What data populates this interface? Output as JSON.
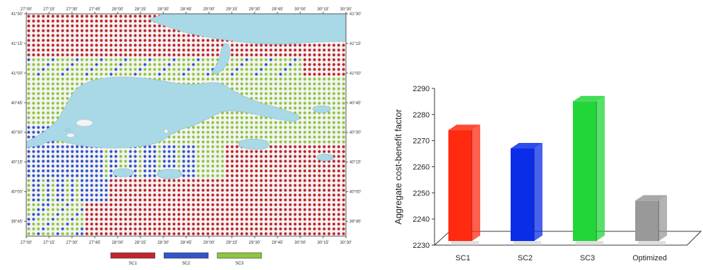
{
  "colors": {
    "sc1": "#c0262c",
    "sc2": "#3355cc",
    "sc3": "#8ec63f",
    "sea": "#a9d8e6",
    "frame": "#9a9a9a"
  },
  "chart_data": [
    {
      "type": "heatmap",
      "title": "",
      "x_ticks": [
        "27°00'",
        "27°15'",
        "27°30'",
        "27°45'",
        "28°00'",
        "28°15'",
        "28°30'",
        "28°45'",
        "29°00'",
        "29°15'",
        "29°30'",
        "29°45'",
        "30°00'",
        "30°15'",
        "30°30'"
      ],
      "y_ticks": [
        "41°30'",
        "41°15'",
        "41°00'",
        "40°45'",
        "40°30'",
        "40°15'",
        "40°00'",
        "39°45'"
      ],
      "xlim": [
        "27°00'",
        "30°30'"
      ],
      "ylim": [
        "39°38'",
        "41°30'"
      ],
      "legend": [
        "SC1",
        "SC2",
        "SC3"
      ],
      "legend_position": "bottom",
      "categories_by_region": {
        "south": "SC1",
        "southwest_band": "SC2",
        "central_and_northeast": "SC3",
        "north_thrace": "SC1"
      }
    },
    {
      "type": "bar",
      "title": "",
      "categories": [
        "SC1",
        "SC2",
        "SC3",
        "Optimized"
      ],
      "values": [
        2274,
        2267,
        2285,
        2247
      ],
      "bar_colors": [
        "#ff2a10",
        "#0a2de8",
        "#22d63a",
        "#999999"
      ],
      "xlabel": "",
      "ylabel": "Aggregate cost-benefit factor",
      "ylim": [
        2230,
        2290
      ],
      "y_ticks": [
        "2230",
        "2240",
        "2250",
        "2260",
        "2270",
        "2280",
        "2290"
      ],
      "grid": false,
      "style": "3d"
    }
  ]
}
